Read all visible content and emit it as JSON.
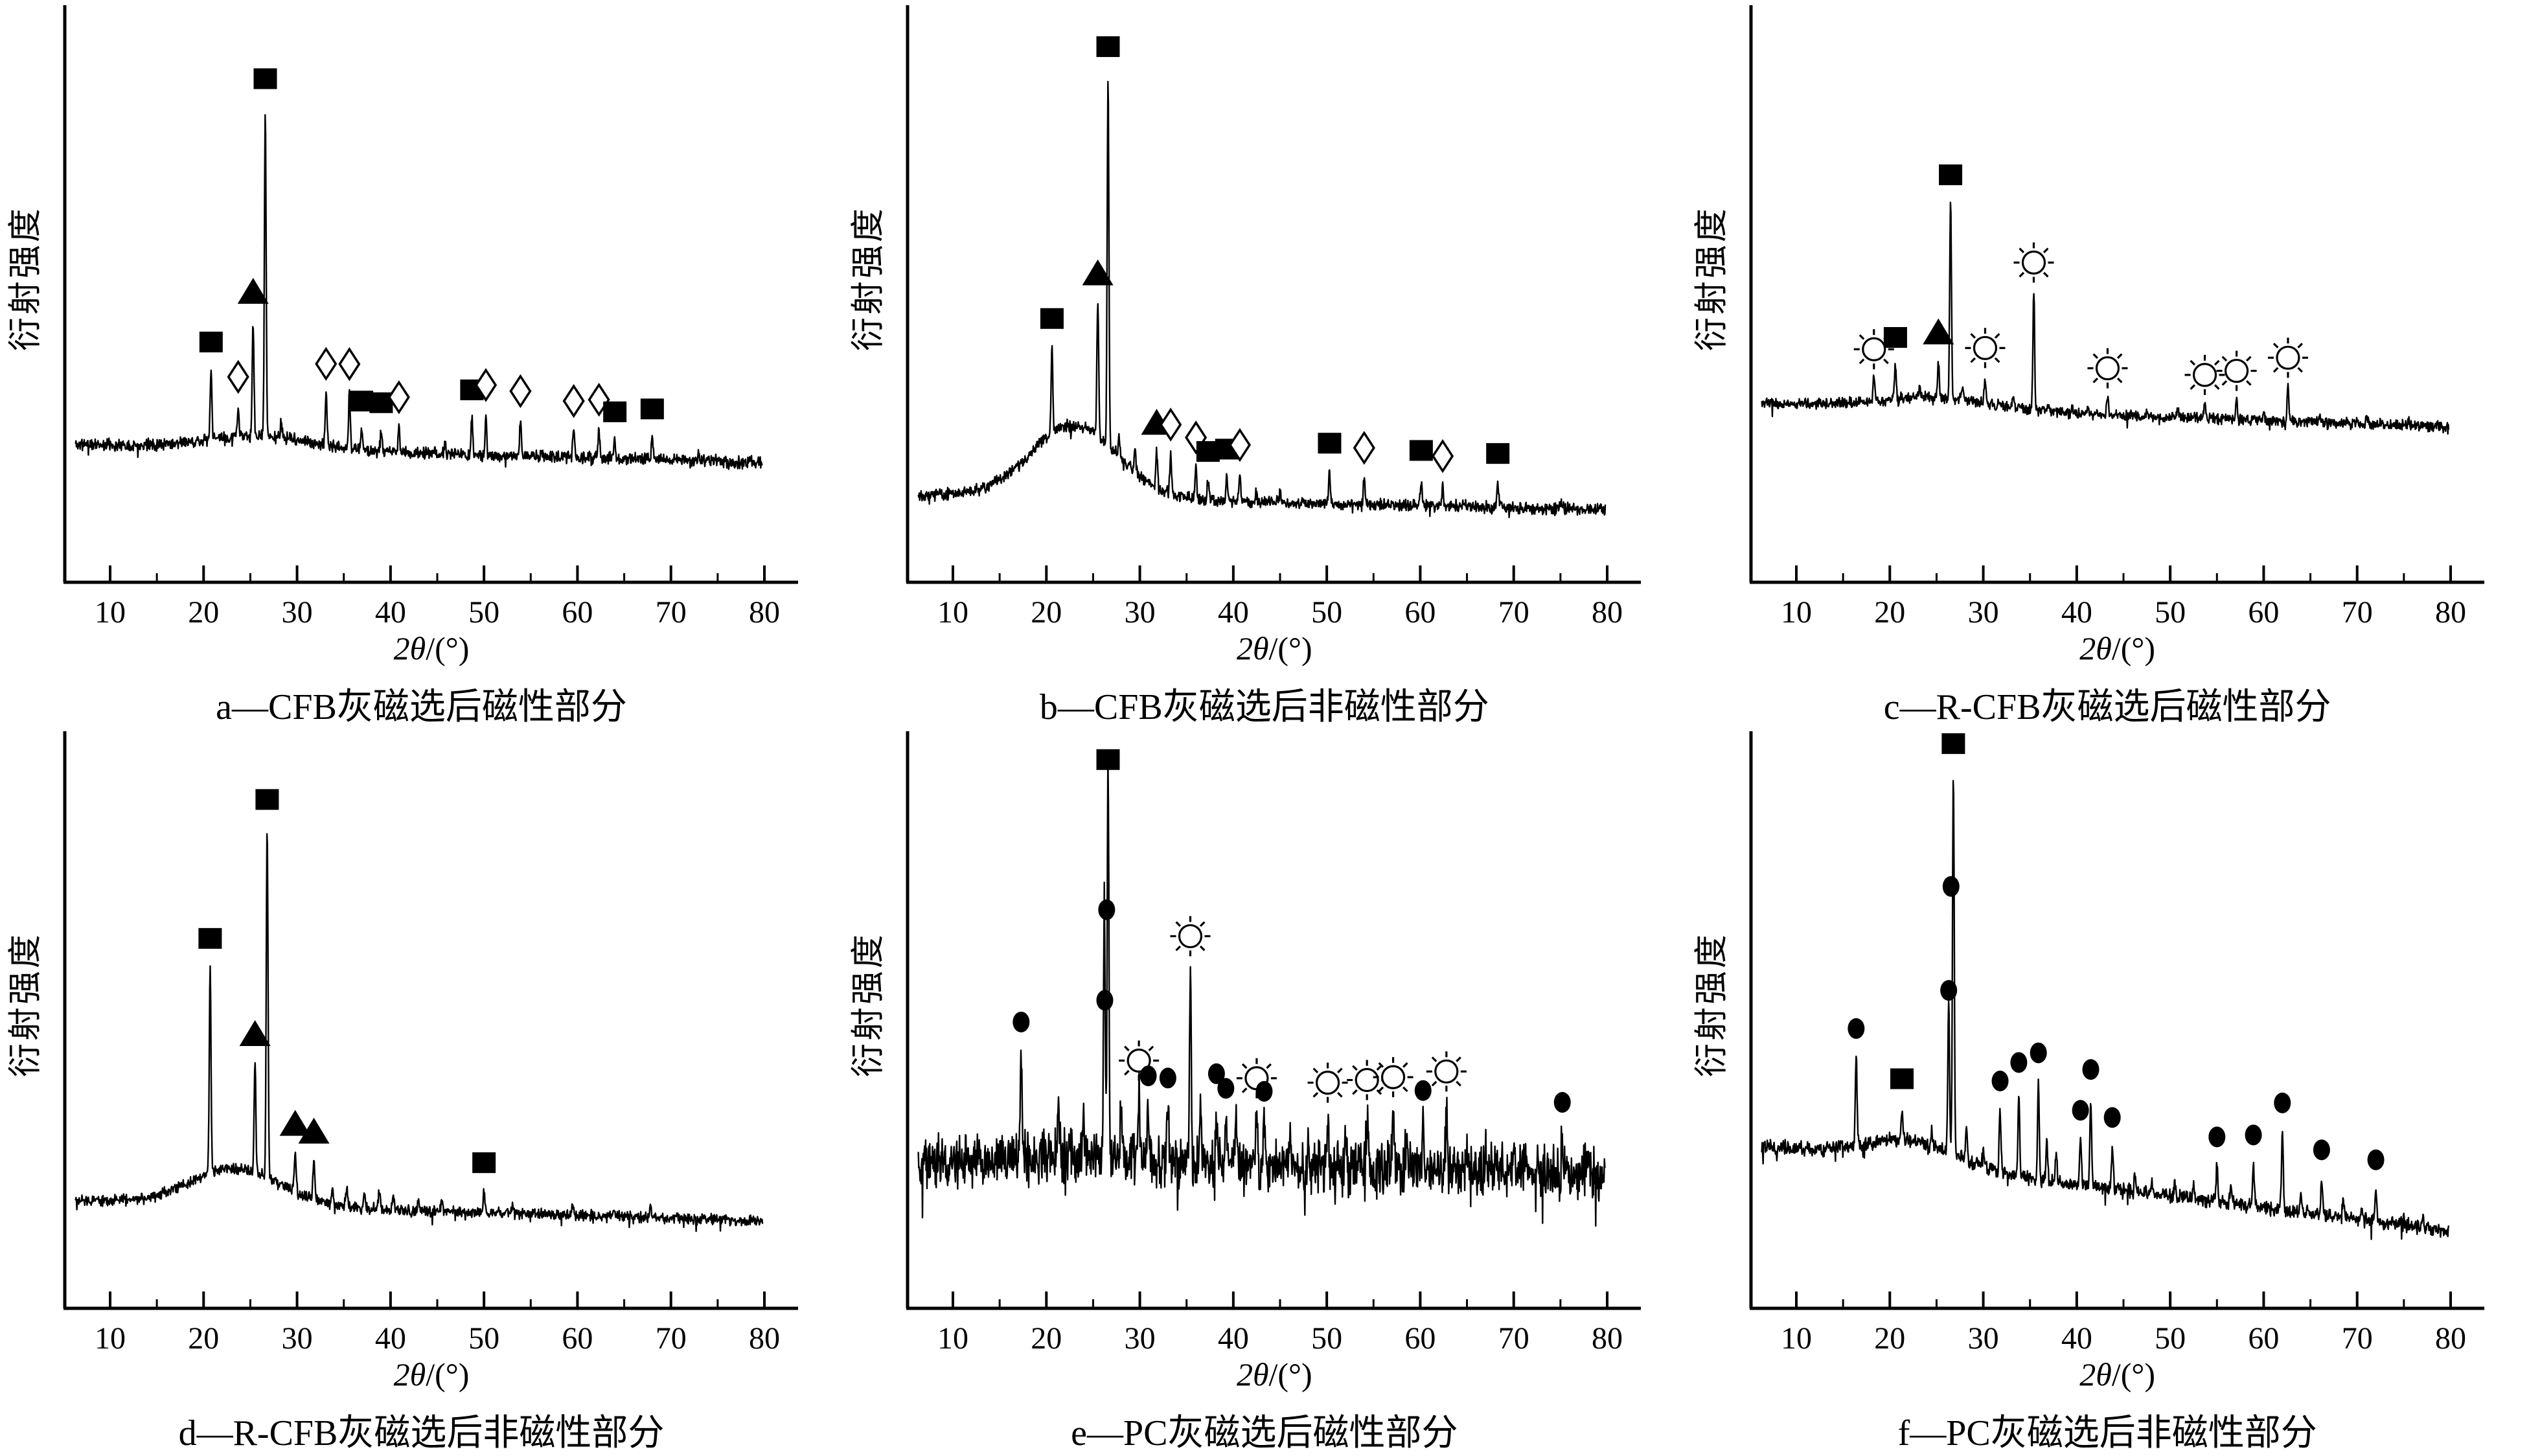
{
  "figure": {
    "background": "#ffffff",
    "foreground": "#000000"
  },
  "axes": {
    "xlabel_var": "2θ",
    "xlabel_rest": "/(°)",
    "xlabel_full": "2θ/(°)",
    "ylabel": "衍射强度",
    "x_ticks": [
      10,
      20,
      30,
      40,
      50,
      60,
      70,
      80
    ],
    "x_range": [
      10,
      80
    ],
    "y_ticks": [],
    "grid": false,
    "legend": "none",
    "marker_symbols": [
      "square",
      "triangle",
      "diamond",
      "circle",
      "sun"
    ]
  },
  "chart_data": [
    {
      "id": "a",
      "type": "line",
      "caption": "a—CFB灰磁选后磁性部分",
      "xlabel": "2θ/(°)",
      "ylabel": "衍射强度",
      "seed": 11,
      "noise": 11,
      "background": {
        "start": 212,
        "end": 185,
        "hump_center": 26,
        "hump_height": 20,
        "hump_width": 8
      },
      "peaks": [
        [
          20.8,
          105
        ],
        [
          23.7,
          45
        ],
        [
          25.3,
          175
        ],
        [
          26.6,
          505
        ],
        [
          28.3,
          25
        ],
        [
          33.1,
          80
        ],
        [
          35.6,
          85
        ],
        [
          36.9,
          30
        ],
        [
          39,
          30
        ],
        [
          40.9,
          40
        ],
        [
          45.8,
          18
        ],
        [
          48.7,
          55
        ],
        [
          50.2,
          62
        ],
        [
          53.9,
          55
        ],
        [
          59.6,
          42
        ],
        [
          62.3,
          45
        ],
        [
          64,
          28
        ],
        [
          68,
          33
        ],
        [
          73,
          12
        ]
      ],
      "markers": [
        {
          "p": 20.8,
          "mh": 150,
          "sym": "square"
        },
        {
          "p": 23.7,
          "mh": 92,
          "sym": "diamond"
        },
        {
          "p": 25.3,
          "mh": 222,
          "sym": "triangle"
        },
        {
          "p": 26.6,
          "mh": 552,
          "sym": "square"
        },
        {
          "p": 33.1,
          "mh": 125,
          "sym": "diamond"
        },
        {
          "p": 35.6,
          "mh": 130,
          "sym": "diamond"
        },
        {
          "p": 36.9,
          "mh": 75,
          "sym": "square"
        },
        {
          "p": 39,
          "mh": 75,
          "sym": "square"
        },
        {
          "p": 40.9,
          "mh": 85,
          "sym": "diamond"
        },
        {
          "p": 48.7,
          "mh": 100,
          "sym": "square"
        },
        {
          "p": 50.2,
          "mh": 108,
          "sym": "diamond"
        },
        {
          "p": 53.9,
          "mh": 100,
          "sym": "diamond"
        },
        {
          "p": 59.6,
          "mh": 87,
          "sym": "diamond"
        },
        {
          "p": 62.3,
          "mh": 90,
          "sym": "diamond"
        },
        {
          "p": 64,
          "mh": 72,
          "sym": "square"
        },
        {
          "p": 68,
          "mh": 78,
          "sym": "square"
        }
      ]
    },
    {
      "id": "b",
      "type": "line",
      "caption": "b—CFB灰磁选后非磁性部分",
      "xlabel": "2θ/(°)",
      "ylabel": "衍射强度",
      "seed": 22,
      "noise": 11,
      "background": {
        "start": 135,
        "end": 112,
        "hump_center": 23,
        "hump_height": 112,
        "hump_width": 6.5
      },
      "peaks": [
        [
          20.6,
          135
        ],
        [
          25.5,
          205
        ],
        [
          26.6,
          570
        ],
        [
          27.8,
          30
        ],
        [
          29.5,
          40
        ],
        [
          31.8,
          55
        ],
        [
          33.3,
          62
        ],
        [
          36,
          50
        ],
        [
          37.3,
          30
        ],
        [
          39.3,
          35
        ],
        [
          40.7,
          42
        ],
        [
          42.5,
          20
        ],
        [
          45,
          15
        ],
        [
          50.3,
          48
        ],
        [
          54,
          42
        ],
        [
          60.1,
          40
        ],
        [
          62.4,
          32
        ],
        [
          68.3,
          38
        ],
        [
          75,
          12
        ]
      ],
      "markers": [
        {
          "p": 20.6,
          "mh": 178,
          "sym": "square"
        },
        {
          "p": 25.5,
          "mh": 250,
          "sym": "triangle"
        },
        {
          "p": 26.6,
          "mh": 615,
          "sym": "square"
        },
        {
          "p": 31.8,
          "mh": 100,
          "sym": "triangle"
        },
        {
          "p": 33.3,
          "mh": 107,
          "sym": "diamond"
        },
        {
          "p": 36,
          "mh": 95,
          "sym": "diamond"
        },
        {
          "p": 37.3,
          "mh": 75,
          "sym": "square"
        },
        {
          "p": 39.3,
          "mh": 80,
          "sym": "square"
        },
        {
          "p": 40.7,
          "mh": 87,
          "sym": "diamond"
        },
        {
          "p": 50.3,
          "mh": 93,
          "sym": "square"
        },
        {
          "p": 54,
          "mh": 87,
          "sym": "diamond"
        },
        {
          "p": 60.1,
          "mh": 85,
          "sym": "square"
        },
        {
          "p": 62.4,
          "mh": 77,
          "sym": "diamond"
        },
        {
          "p": 68.3,
          "mh": 83,
          "sym": "square"
        }
      ]
    },
    {
      "id": "c",
      "type": "line",
      "caption": "c—R-CFB灰磁选后磁性部分",
      "xlabel": "2θ/(°)",
      "ylabel": "衍射强度",
      "seed": 33,
      "noise": 10,
      "background": {
        "start": 275,
        "end": 240,
        "hump_center": 25,
        "hump_height": 18,
        "hump_width": 8
      },
      "peaks": [
        [
          18.3,
          38
        ],
        [
          20.6,
          52
        ],
        [
          23.2,
          15
        ],
        [
          25.2,
          55
        ],
        [
          26.5,
          310
        ],
        [
          27.8,
          20
        ],
        [
          30.2,
          42
        ],
        [
          33.2,
          15
        ],
        [
          35.4,
          185
        ],
        [
          37,
          12
        ],
        [
          39.5,
          12
        ],
        [
          41.2,
          10
        ],
        [
          43.3,
          30
        ],
        [
          47.5,
          10
        ],
        [
          50.8,
          10
        ],
        [
          53.7,
          25
        ],
        [
          57.1,
          32
        ],
        [
          60,
          10
        ],
        [
          62.6,
          55
        ],
        [
          66,
          8
        ],
        [
          71,
          10
        ],
        [
          75.5,
          8
        ]
      ],
      "markers": [
        {
          "p": 18.3,
          "mh": 80,
          "sym": "sun"
        },
        {
          "p": 20.6,
          "mh": 95,
          "sym": "square"
        },
        {
          "p": 25.2,
          "mh": 100,
          "sym": "triangle"
        },
        {
          "p": 26.5,
          "mh": 345,
          "sym": "square"
        },
        {
          "p": 30.2,
          "mh": 85,
          "sym": "sun"
        },
        {
          "p": 35.4,
          "mh": 228,
          "sym": "sun"
        },
        {
          "p": 43.3,
          "mh": 72,
          "sym": "sun"
        },
        {
          "p": 53.7,
          "mh": 67,
          "sym": "sun"
        },
        {
          "p": 57.1,
          "mh": 75,
          "sym": "sun"
        },
        {
          "p": 62.6,
          "mh": 98,
          "sym": "sun"
        }
      ]
    },
    {
      "id": "d",
      "type": "line",
      "caption": "d—R-CFB灰磁选后非磁性部分",
      "xlabel": "2θ/(°)",
      "ylabel": "衍射强度",
      "seed": 44,
      "noise": 10,
      "background": {
        "start": 165,
        "end": 135,
        "hump_center": 23.5,
        "hump_height": 56,
        "hump_width": 7
      },
      "peaks": [
        [
          20.7,
          320
        ],
        [
          25.5,
          170
        ],
        [
          26.8,
          540
        ],
        [
          29.8,
          60
        ],
        [
          31.8,
          60
        ],
        [
          33.8,
          28
        ],
        [
          35.3,
          32
        ],
        [
          37.2,
          24
        ],
        [
          38.8,
          28
        ],
        [
          40.3,
          22
        ],
        [
          43,
          18
        ],
        [
          45.5,
          14
        ],
        [
          50,
          34
        ],
        [
          53,
          12
        ],
        [
          59.5,
          14
        ],
        [
          64,
          10
        ],
        [
          67.8,
          16
        ]
      ],
      "markers": [
        {
          "p": 20.7,
          "mh": 363,
          "sym": "square"
        },
        {
          "p": 25.5,
          "mh": 213,
          "sym": "triangle"
        },
        {
          "p": 26.8,
          "mh": 583,
          "sym": "square"
        },
        {
          "p": 29.8,
          "mh": 103,
          "sym": "triangle"
        },
        {
          "p": 31.8,
          "mh": 103,
          "sym": "triangle"
        },
        {
          "p": 50,
          "mh": 77,
          "sym": "square"
        }
      ]
    },
    {
      "id": "e",
      "type": "line",
      "caption": "e—PC灰磁选后磁性部分",
      "xlabel": "2θ/(°)",
      "ylabel": "衍射强度",
      "seed": 55,
      "noise": 48,
      "background": {
        "start": 225,
        "end": 210,
        "hump_center": 24,
        "hump_height": 15,
        "hump_width": 9
      },
      "peaks": [
        [
          17.3,
          165
        ],
        [
          21.3,
          80
        ],
        [
          24,
          50
        ],
        [
          26.2,
          380
        ],
        [
          26.6,
          615
        ],
        [
          28,
          90
        ],
        [
          29.9,
          105
        ],
        [
          30.9,
          85
        ],
        [
          33,
          85
        ],
        [
          35.4,
          305
        ],
        [
          36.5,
          90
        ],
        [
          38.2,
          95
        ],
        [
          39.2,
          75
        ],
        [
          40.3,
          70
        ],
        [
          42.5,
          90
        ],
        [
          43.3,
          70
        ],
        [
          46,
          50
        ],
        [
          48,
          50
        ],
        [
          50.1,
          85
        ],
        [
          52,
          50
        ],
        [
          54.3,
          90
        ],
        [
          57.1,
          95
        ],
        [
          58.5,
          55
        ],
        [
          60.3,
          75
        ],
        [
          62.8,
          105
        ],
        [
          65,
          40
        ],
        [
          67,
          40
        ],
        [
          70,
          40
        ],
        [
          72.5,
          35
        ],
        [
          75.2,
          60
        ],
        [
          78,
          35
        ]
      ],
      "markers": [
        {
          "p": 17.3,
          "mh": 210,
          "sym": "circle"
        },
        {
          "p": 26.25,
          "mh": 240,
          "sym": "circle"
        },
        {
          "p": 26.45,
          "mh": 380,
          "sym": "circle"
        },
        {
          "p": 26.6,
          "mh": 612,
          "sym": "square"
        },
        {
          "p": 29.9,
          "mh": 152,
          "sym": "sun"
        },
        {
          "p": 30.9,
          "mh": 130,
          "sym": "circle"
        },
        {
          "p": 33,
          "mh": 130,
          "sym": "circle"
        },
        {
          "p": 35.4,
          "mh": 352,
          "sym": "sun"
        },
        {
          "p": 38.2,
          "mh": 142,
          "sym": "circle"
        },
        {
          "p": 39.2,
          "mh": 120,
          "sym": "circle"
        },
        {
          "p": 42.5,
          "mh": 137,
          "sym": "sun"
        },
        {
          "p": 43.3,
          "mh": 117,
          "sym": "circle"
        },
        {
          "p": 50.1,
          "mh": 132,
          "sym": "sun"
        },
        {
          "p": 54.3,
          "mh": 137,
          "sym": "sun"
        },
        {
          "p": 57.1,
          "mh": 142,
          "sym": "sun"
        },
        {
          "p": 60.3,
          "mh": 122,
          "sym": "circle"
        },
        {
          "p": 62.8,
          "mh": 152,
          "sym": "sun"
        },
        {
          "p": 75.2,
          "mh": 107,
          "sym": "circle"
        }
      ]
    },
    {
      "id": "f",
      "type": "line",
      "caption": "f—PC灰磁选后非磁性部分",
      "xlabel": "2θ/(°)",
      "ylabel": "衍射强度",
      "seed": 66,
      "noise": 13,
      "background": {
        "start": 245,
        "end": 120,
        "hump_center": 22,
        "hump_height": 35,
        "hump_width": 7
      },
      "peaks": [
        [
          16.4,
          135
        ],
        [
          21.3,
          50
        ],
        [
          24.5,
          25
        ],
        [
          26.3,
          230
        ],
        [
          26.8,
          590
        ],
        [
          28.2,
          50
        ],
        [
          30,
          30
        ],
        [
          31.8,
          95
        ],
        [
          33.8,
          130
        ],
        [
          35.9,
          150
        ],
        [
          36.8,
          60
        ],
        [
          37.8,
          45
        ],
        [
          40.4,
          70
        ],
        [
          41.5,
          135
        ],
        [
          43.8,
          65
        ],
        [
          46.2,
          25
        ],
        [
          48,
          18
        ],
        [
          50.5,
          22
        ],
        [
          52.5,
          18
        ],
        [
          55,
          55
        ],
        [
          56.5,
          30
        ],
        [
          58.9,
          65
        ],
        [
          62,
          120
        ],
        [
          64,
          25
        ],
        [
          66.2,
          55
        ],
        [
          68.5,
          22
        ],
        [
          70.5,
          18
        ],
        [
          72,
          50
        ],
        [
          75,
          18
        ],
        [
          77,
          14
        ]
      ],
      "markers": [
        {
          "p": 16.4,
          "mh": 180,
          "sym": "circle"
        },
        {
          "p": 21.3,
          "mh": 95,
          "sym": "square"
        },
        {
          "p": 26.3,
          "mh": 251,
          "sym": "circle"
        },
        {
          "p": 26.55,
          "mh": 413,
          "sym": "circle"
        },
        {
          "p": 26.8,
          "mh": 635,
          "sym": "square"
        },
        {
          "p": 31.8,
          "mh": 140,
          "sym": "circle"
        },
        {
          "p": 33.8,
          "mh": 175,
          "sym": "circle"
        },
        {
          "p": 35.9,
          "mh": 195,
          "sym": "circle"
        },
        {
          "p": 40.4,
          "mh": 115,
          "sym": "circle"
        },
        {
          "p": 41.5,
          "mh": 180,
          "sym": "circle"
        },
        {
          "p": 43.8,
          "mh": 110,
          "sym": "circle"
        },
        {
          "p": 55,
          "mh": 100,
          "sym": "circle"
        },
        {
          "p": 58.9,
          "mh": 110,
          "sym": "circle"
        },
        {
          "p": 62,
          "mh": 165,
          "sym": "circle"
        },
        {
          "p": 66.2,
          "mh": 100,
          "sym": "circle"
        },
        {
          "p": 72,
          "mh": 95,
          "sym": "circle"
        }
      ]
    }
  ]
}
